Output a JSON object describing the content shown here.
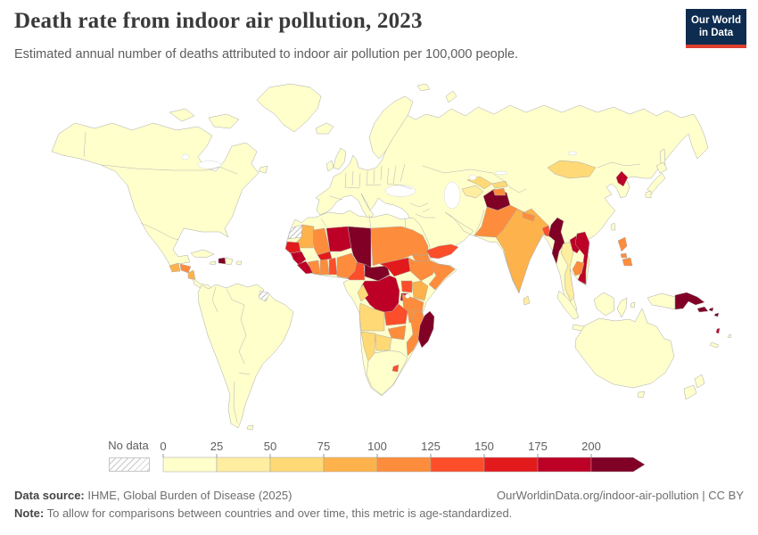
{
  "header": {
    "title": "Death rate from indoor air pollution, 2023",
    "subtitle": "Estimated annual number of deaths attributed to indoor air pollution per 100,000 people.",
    "logo_line1": "Our World",
    "logo_line2": "in Data"
  },
  "colors": {
    "logo_navy": "#0d2c4f",
    "logo_red": "#dd3e2e",
    "land_stroke": "#a9a9a9",
    "ocean": "#ffffff"
  },
  "legend": {
    "no_data_label": "No data",
    "ticks": [
      "0",
      "25",
      "50",
      "75",
      "100",
      "125",
      "150",
      "175",
      "200"
    ],
    "bin_colors": [
      "#FFFFCC",
      "#FFEDA0",
      "#FED976",
      "#FEB24C",
      "#FD8D3C",
      "#FC4E2A",
      "#E31A1C",
      "#BD0026",
      "#800026"
    ]
  },
  "footer": {
    "source_label": "Data source:",
    "source_text": " IHME, Global Burden of Disease (2025)",
    "link_text": "OurWorldinData.org/indoor-air-pollution | CC BY",
    "note_label": "Note:",
    "note_text": " To allow for comparisons between countries and over time, this metric is age-standardized."
  },
  "chart_data": {
    "type": "choropleth_map",
    "title": "Death rate from indoor air pollution, 2023",
    "unit": "deaths per 100,000 people (age-standardized)",
    "year": 2023,
    "scale": {
      "min": 0,
      "max": 200,
      "bin_size": 25,
      "open_ended_top": true,
      "bins": [
        "0–25",
        "25–50",
        "50–75",
        "75–100",
        "100–125",
        "125–150",
        "150–175",
        "175–200",
        "200+"
      ],
      "colors": [
        "#FFFFCC",
        "#FFEDA0",
        "#FED976",
        "#FEB24C",
        "#FD8D3C",
        "#FC4E2A",
        "#E31A1C",
        "#BD0026",
        "#800026"
      ],
      "no_data_color": "no-data"
    },
    "regions": [
      {
        "id": "north-america",
        "label": "Canada, United States, Mexico",
        "bin": "0–25",
        "color": "#FFFFCC"
      },
      {
        "id": "greenland",
        "label": "Greenland",
        "bin": "0–25",
        "color": "#FFFFCC"
      },
      {
        "id": "cuba",
        "label": "Cuba",
        "bin": "0–25",
        "color": "#FFFFCC"
      },
      {
        "id": "jamaica",
        "label": "Jamaica",
        "bin": "0–25",
        "color": "#FFFFCC"
      },
      {
        "id": "haiti",
        "label": "Haiti",
        "bin": "200+",
        "color": "#800026"
      },
      {
        "id": "dominican-republic",
        "label": "Dominican Republic",
        "bin": "0–25",
        "color": "#FFFFCC"
      },
      {
        "id": "puerto-rico",
        "label": "Puerto Rico",
        "bin": "0–25",
        "color": "#FFFFCC"
      },
      {
        "id": "guatemala",
        "label": "Guatemala",
        "bin": "75–100",
        "color": "#FEB24C"
      },
      {
        "id": "honduras",
        "label": "Honduras",
        "bin": "100–125",
        "color": "#FD8D3C"
      },
      {
        "id": "nicaragua",
        "label": "Nicaragua",
        "bin": "75–100",
        "color": "#FEB24C"
      },
      {
        "id": "costa-rica-panama",
        "label": "Costa Rica and Panama",
        "bin": "0–25",
        "color": "#FFFFCC"
      },
      {
        "id": "south-america",
        "label": "South America",
        "bin": "0–25",
        "color": "#FFFFCC"
      },
      {
        "id": "french-guiana",
        "label": "French Guiana",
        "bin": "No data",
        "color": "no-data"
      },
      {
        "id": "eurasia",
        "label": "Europe, Russia, Turkey, Iran, Saudi Arabia, Kazakhstan, China, Malaysia",
        "bin": "0–25",
        "color": "#FFFFCC"
      },
      {
        "id": "scandinavia",
        "label": "Norway and Sweden",
        "bin": "0–25",
        "color": "#FFFFCC"
      },
      {
        "id": "uk",
        "label": "United Kingdom",
        "bin": "0–25",
        "color": "#FFFFCC"
      },
      {
        "id": "ireland",
        "label": "Ireland",
        "bin": "0–25",
        "color": "#FFFFCC"
      },
      {
        "id": "iceland",
        "label": "Iceland",
        "bin": "0–25",
        "color": "#FFFFCC"
      },
      {
        "id": "svalbard",
        "label": "Svalbard",
        "bin": "0–25",
        "color": "#FFFFCC"
      },
      {
        "id": "japan",
        "label": "Japan",
        "bin": "0–25",
        "color": "#FFFFCC"
      },
      {
        "id": "taiwan",
        "label": "Taiwan",
        "bin": "0–25",
        "color": "#FFFFCC"
      },
      {
        "id": "sri-lanka",
        "label": "Sri Lanka",
        "bin": "25–50",
        "color": "#FFEDA0"
      },
      {
        "id": "indonesia",
        "label": "Indonesia",
        "bin": "0–25",
        "color": "#FFFFCC"
      },
      {
        "id": "timor-leste",
        "label": "Timor-Leste",
        "bin": "175–200",
        "color": "#BD0026"
      },
      {
        "id": "philippines",
        "label": "Philippines",
        "bin": "100–125",
        "color": "#FD8D3C"
      },
      {
        "id": "papua-new-guinea",
        "label": "Papua New Guinea",
        "bin": "200+",
        "color": "#800026"
      },
      {
        "id": "solomon-islands",
        "label": "Solomon Islands",
        "bin": "200+",
        "color": "#800026"
      },
      {
        "id": "vanuatu",
        "label": "Vanuatu",
        "bin": "175–200",
        "color": "#BD0026"
      },
      {
        "id": "fiji",
        "label": "Fiji",
        "bin": "0–25",
        "color": "#FFFFCC"
      },
      {
        "id": "new-caledonia",
        "label": "New Caledonia",
        "bin": "0–25",
        "color": "#FFFFCC"
      },
      {
        "id": "australia",
        "label": "Australia",
        "bin": "0–25",
        "color": "#FFFFCC"
      },
      {
        "id": "new-zealand",
        "label": "New Zealand",
        "bin": "0–25",
        "color": "#FFFFCC"
      },
      {
        "id": "north-korea",
        "label": "North Korea",
        "bin": "175–200",
        "color": "#BD0026"
      },
      {
        "id": "mongolia",
        "label": "Mongolia",
        "bin": "50–75",
        "color": "#FED976"
      },
      {
        "id": "uzbekistan",
        "label": "Uzbekistan",
        "bin": "50–75",
        "color": "#FED976"
      },
      {
        "id": "turkmenistan",
        "label": "Turkmenistan",
        "bin": "25–50",
        "color": "#FFEDA0"
      },
      {
        "id": "kyrgyzstan",
        "label": "Kyrgyzstan",
        "bin": "50–75",
        "color": "#FED976"
      },
      {
        "id": "tajikistan",
        "label": "Tajikistan",
        "bin": "100–125",
        "color": "#FD8D3C"
      },
      {
        "id": "afghanistan",
        "label": "Afghanistan",
        "bin": "200+",
        "color": "#800026"
      },
      {
        "id": "pakistan",
        "label": "Pakistan",
        "bin": "100–125",
        "color": "#FD8D3C"
      },
      {
        "id": "india",
        "label": "India",
        "bin": "75–100",
        "color": "#FEB24C"
      },
      {
        "id": "nepal",
        "label": "Nepal",
        "bin": "100–125",
        "color": "#FD8D3C"
      },
      {
        "id": "bangladesh",
        "label": "Bangladesh",
        "bin": "125–150",
        "color": "#FC4E2A"
      },
      {
        "id": "myanmar",
        "label": "Myanmar",
        "bin": "200+",
        "color": "#800026"
      },
      {
        "id": "thailand",
        "label": "Thailand",
        "bin": "25–50",
        "color": "#FFEDA0"
      },
      {
        "id": "laos",
        "label": "Laos",
        "bin": "175–200",
        "color": "#BD0026"
      },
      {
        "id": "vietnam",
        "label": "Vietnam",
        "bin": "175–200",
        "color": "#BD0026"
      },
      {
        "id": "cambodia",
        "label": "Cambodia",
        "bin": "100–125",
        "color": "#FD8D3C"
      },
      {
        "id": "yemen",
        "label": "Yemen",
        "bin": "125–150",
        "color": "#FC4E2A"
      },
      {
        "id": "north-africa",
        "label": "Morocco, Algeria, Tunisia, Libya, Egypt, Gabon, Equatorial Guinea",
        "bin": "0–25",
        "color": "#FFFFCC"
      },
      {
        "id": "western-sahara",
        "label": "Western Sahara",
        "bin": "No data",
        "color": "no-data"
      },
      {
        "id": "mauritania",
        "label": "Mauritania",
        "bin": "75–100",
        "color": "#FEB24C"
      },
      {
        "id": "senegal",
        "label": "Senegal",
        "bin": "150–175",
        "color": "#E31A1C"
      },
      {
        "id": "guinea",
        "label": "Guinea and Guinea-Bissau",
        "bin": "175–200",
        "color": "#BD0026"
      },
      {
        "id": "sierra-leone-liberia",
        "label": "Sierra Leone and Liberia",
        "bin": "175–200",
        "color": "#BD0026"
      },
      {
        "id": "mali",
        "label": "Mali",
        "bin": "100–125",
        "color": "#FD8D3C"
      },
      {
        "id": "burkina-faso",
        "label": "Burkina Faso",
        "bin": "150–175",
        "color": "#E31A1C"
      },
      {
        "id": "ivory-coast",
        "label": "Côte d'Ivoire",
        "bin": "100–125",
        "color": "#FD8D3C"
      },
      {
        "id": "ghana",
        "label": "Ghana",
        "bin": "100–125",
        "color": "#FD8D3C"
      },
      {
        "id": "togo-benin",
        "label": "Togo and Benin",
        "bin": "125–150",
        "color": "#FC4E2A"
      },
      {
        "id": "niger",
        "label": "Niger",
        "bin": "175–200",
        "color": "#BD0026"
      },
      {
        "id": "nigeria",
        "label": "Nigeria",
        "bin": "100–125",
        "color": "#FD8D3C"
      },
      {
        "id": "chad",
        "label": "Chad",
        "bin": "200+",
        "color": "#800026"
      },
      {
        "id": "cameroon",
        "label": "Cameroon",
        "bin": "125–150",
        "color": "#FC4E2A"
      },
      {
        "id": "central-african-republic",
        "label": "Central African Republic",
        "bin": "200+",
        "color": "#800026"
      },
      {
        "id": "sudan",
        "label": "Sudan",
        "bin": "100–125",
        "color": "#FD8D3C"
      },
      {
        "id": "eritrea",
        "label": "Eritrea",
        "bin": "100–125",
        "color": "#FD8D3C"
      },
      {
        "id": "south-sudan",
        "label": "South Sudan",
        "bin": "150–175",
        "color": "#E31A1C"
      },
      {
        "id": "ethiopia",
        "label": "Ethiopia",
        "bin": "100–125",
        "color": "#FD8D3C"
      },
      {
        "id": "somalia",
        "label": "Somalia",
        "bin": "100–125",
        "color": "#FD8D3C"
      },
      {
        "id": "uganda",
        "label": "Uganda",
        "bin": "125–150",
        "color": "#FC4E2A"
      },
      {
        "id": "kenya",
        "label": "Kenya",
        "bin": "75–100",
        "color": "#FEB24C"
      },
      {
        "id": "rwanda-burundi",
        "label": "Rwanda and Burundi",
        "bin": "175–200",
        "color": "#BD0026"
      },
      {
        "id": "democratic-republic-of-congo",
        "label": "Democratic Republic of Congo",
        "bin": "175–200",
        "color": "#BD0026"
      },
      {
        "id": "congo",
        "label": "Congo",
        "bin": "50–75",
        "color": "#FED976"
      },
      {
        "id": "tanzania",
        "label": "Tanzania",
        "bin": "100–125",
        "color": "#FD8D3C"
      },
      {
        "id": "angola",
        "label": "Angola",
        "bin": "50–75",
        "color": "#FED976"
      },
      {
        "id": "zambia",
        "label": "Zambia",
        "bin": "125–150",
        "color": "#FC4E2A"
      },
      {
        "id": "malawi",
        "label": "Malawi",
        "bin": "100–125",
        "color": "#FD8D3C"
      },
      {
        "id": "mozambique",
        "label": "Mozambique",
        "bin": "100–125",
        "color": "#FD8D3C"
      },
      {
        "id": "zimbabwe",
        "label": "Zimbabwe",
        "bin": "100–125",
        "color": "#FD8D3C"
      },
      {
        "id": "botswana",
        "label": "Botswana",
        "bin": "50–75",
        "color": "#FED976"
      },
      {
        "id": "namibia",
        "label": "Namibia",
        "bin": "50–75",
        "color": "#FED976"
      },
      {
        "id": "south-africa",
        "label": "South Africa",
        "bin": "0–25",
        "color": "#FFFFCC"
      },
      {
        "id": "lesotho",
        "label": "Lesotho",
        "bin": "125–150",
        "color": "#FC4E2A"
      },
      {
        "id": "madagascar",
        "label": "Madagascar",
        "bin": "200+",
        "color": "#800026"
      }
    ]
  }
}
